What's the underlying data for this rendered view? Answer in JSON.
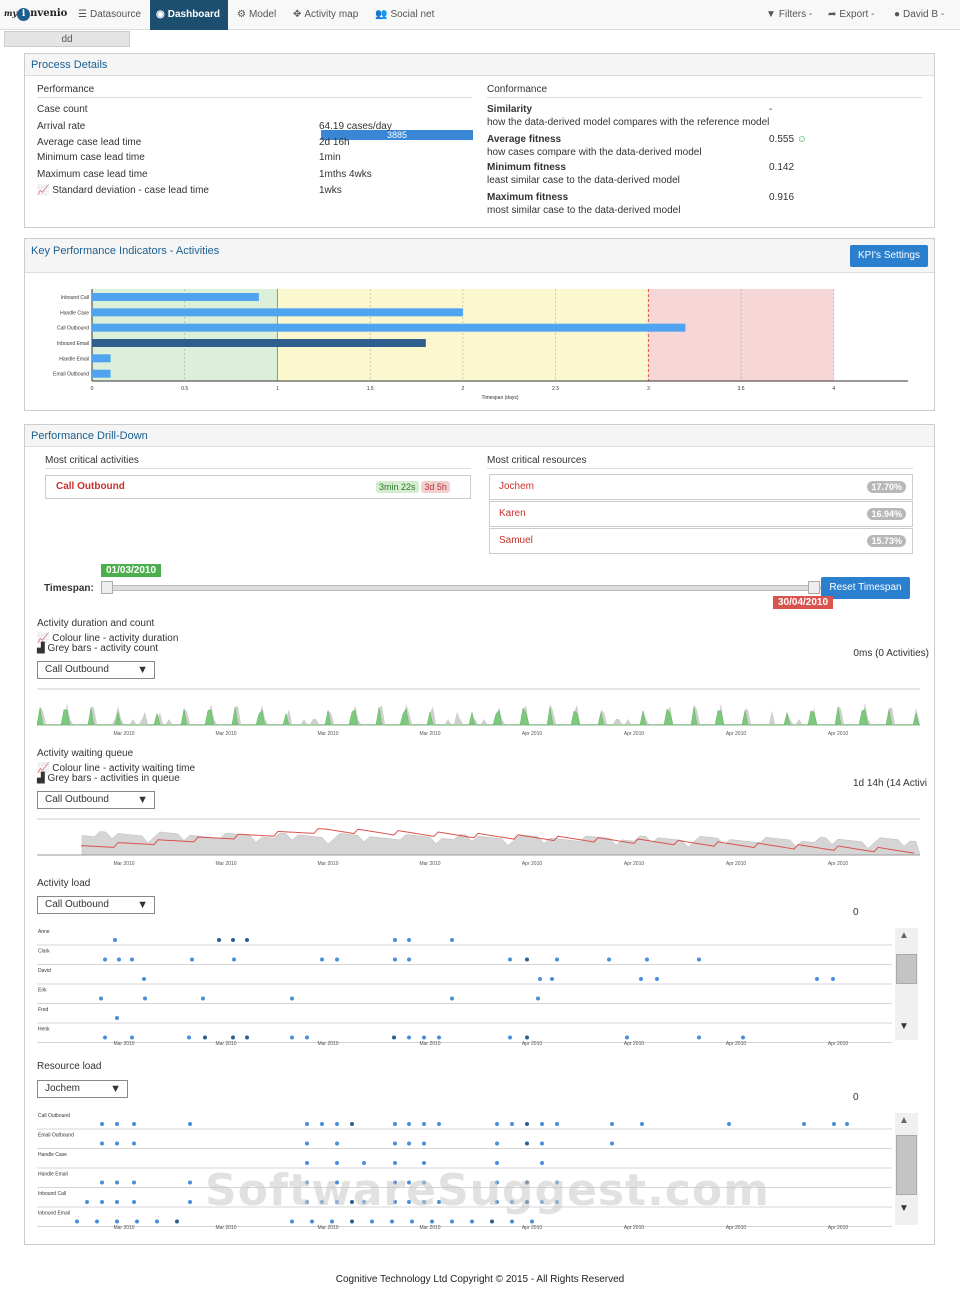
{
  "nav": {
    "logo_prefix": "my",
    "logo_o": "i",
    "logo_suffix": "nvenio",
    "items": [
      "Datasource",
      "Dashboard",
      "Model",
      "Activity map",
      "Social net"
    ],
    "right": [
      "Filters -",
      "Export -",
      "David B -"
    ]
  },
  "tab_label": "dd",
  "process_details": {
    "title": "Process Details",
    "performance_label": "Performance",
    "rows": [
      [
        "Case count",
        "3885"
      ],
      [
        "Arrival rate",
        "64.19 cases/day"
      ],
      [
        "Average case lead time",
        "2d 16h"
      ],
      [
        "Minimum case lead time",
        "1min"
      ],
      [
        "Maximum case lead time",
        "1mths 4wks"
      ],
      [
        "Standard deviation - case lead time",
        "1wks"
      ]
    ],
    "conformance_label": "Conformance",
    "conf": [
      [
        "Similarity",
        "how the data-derived model compares with the reference model",
        "-"
      ],
      [
        "Average fitness",
        "how cases compare with the data-derived model",
        "0.555"
      ],
      [
        "Minimum fitness",
        "least similar case to the data-derived model",
        "0.142"
      ],
      [
        "Maximum fitness",
        "most similar case to the data-derived model",
        "0.916"
      ]
    ]
  },
  "kpi": {
    "title": "Key Performance Indicators - Activities",
    "settings_button": "KPI's Settings"
  },
  "chart_data": {
    "type": "bar",
    "categories": [
      "Inbound Call",
      "Handle Case",
      "Call Outbound",
      "Inbound Email",
      "Handle Email",
      "Email Outbound"
    ],
    "values": [
      0.9,
      2.0,
      3.2,
      1.8,
      0.1,
      0.1
    ],
    "xlabel": "Timespan (days)",
    "xlim": [
      0,
      4.4
    ],
    "xticks": [
      "0",
      "0.5",
      "1",
      "1.5",
      "2",
      "2.5",
      "3",
      "3.5",
      "4"
    ],
    "zones": [
      {
        "from": 0,
        "to": 1,
        "color": "#dcefd9"
      },
      {
        "from": 1,
        "to": 3,
        "color": "#fbf8cf"
      },
      {
        "from": 3,
        "to": 4,
        "color": "#f6d6d6"
      }
    ]
  },
  "drilldown": {
    "title": "Performance Drill-Down",
    "crit_act_label": "Most critical activities",
    "crit_act": {
      "name": "Call Outbound",
      "green": "3min 22s",
      "red": "3d 5h"
    },
    "crit_res_label": "Most critical resources",
    "crit_res": [
      [
        "Jochem",
        "17.70%"
      ],
      [
        "Karen",
        "16.94%"
      ],
      [
        "Samuel",
        "15.73%"
      ]
    ],
    "timespan_label": "Timespan:",
    "start": "01/03/2010",
    "end": "30/04/2010",
    "reset": "Reset Timespan",
    "dur_title": "Activity duration and count",
    "dur_l1": "Colour line - activity duration",
    "dur_l2": "Grey bars - activity count",
    "dur_select": "Call Outbound",
    "dur_value": "0ms (0 Activities)",
    "wait_title": "Activity waiting queue",
    "wait_l1": "Colour line - activity waiting time",
    "wait_l2": "Grey bars - activities in queue",
    "wait_select": "Call Outbound",
    "wait_value": "1d 14h (14 Activi",
    "load_title": "Activity load",
    "load_select": "Call Outbound",
    "load_value": "0",
    "load_rows": [
      "Anne",
      "Clark",
      "David",
      "Erik",
      "Fred",
      "Henk"
    ],
    "res_title": "Resource load",
    "res_select": "Jochem",
    "res_value": "0",
    "res_rows": [
      "Call Outbound",
      "Email Outbound",
      "Handle Case",
      "Handle Email",
      "Inbound Call",
      "Inbound Email"
    ],
    "time_ticks": [
      "Mar 2010",
      "Mar 2010",
      "Mar 2010",
      "Mar 2010",
      "Apr 2010",
      "Apr 2010",
      "Apr 2010",
      "Apr 2010"
    ]
  },
  "footer": "Cognitive Technology Ltd Copyright © 2015 - All Rights Reserved",
  "watermark": "SoftwareSuggest.com"
}
